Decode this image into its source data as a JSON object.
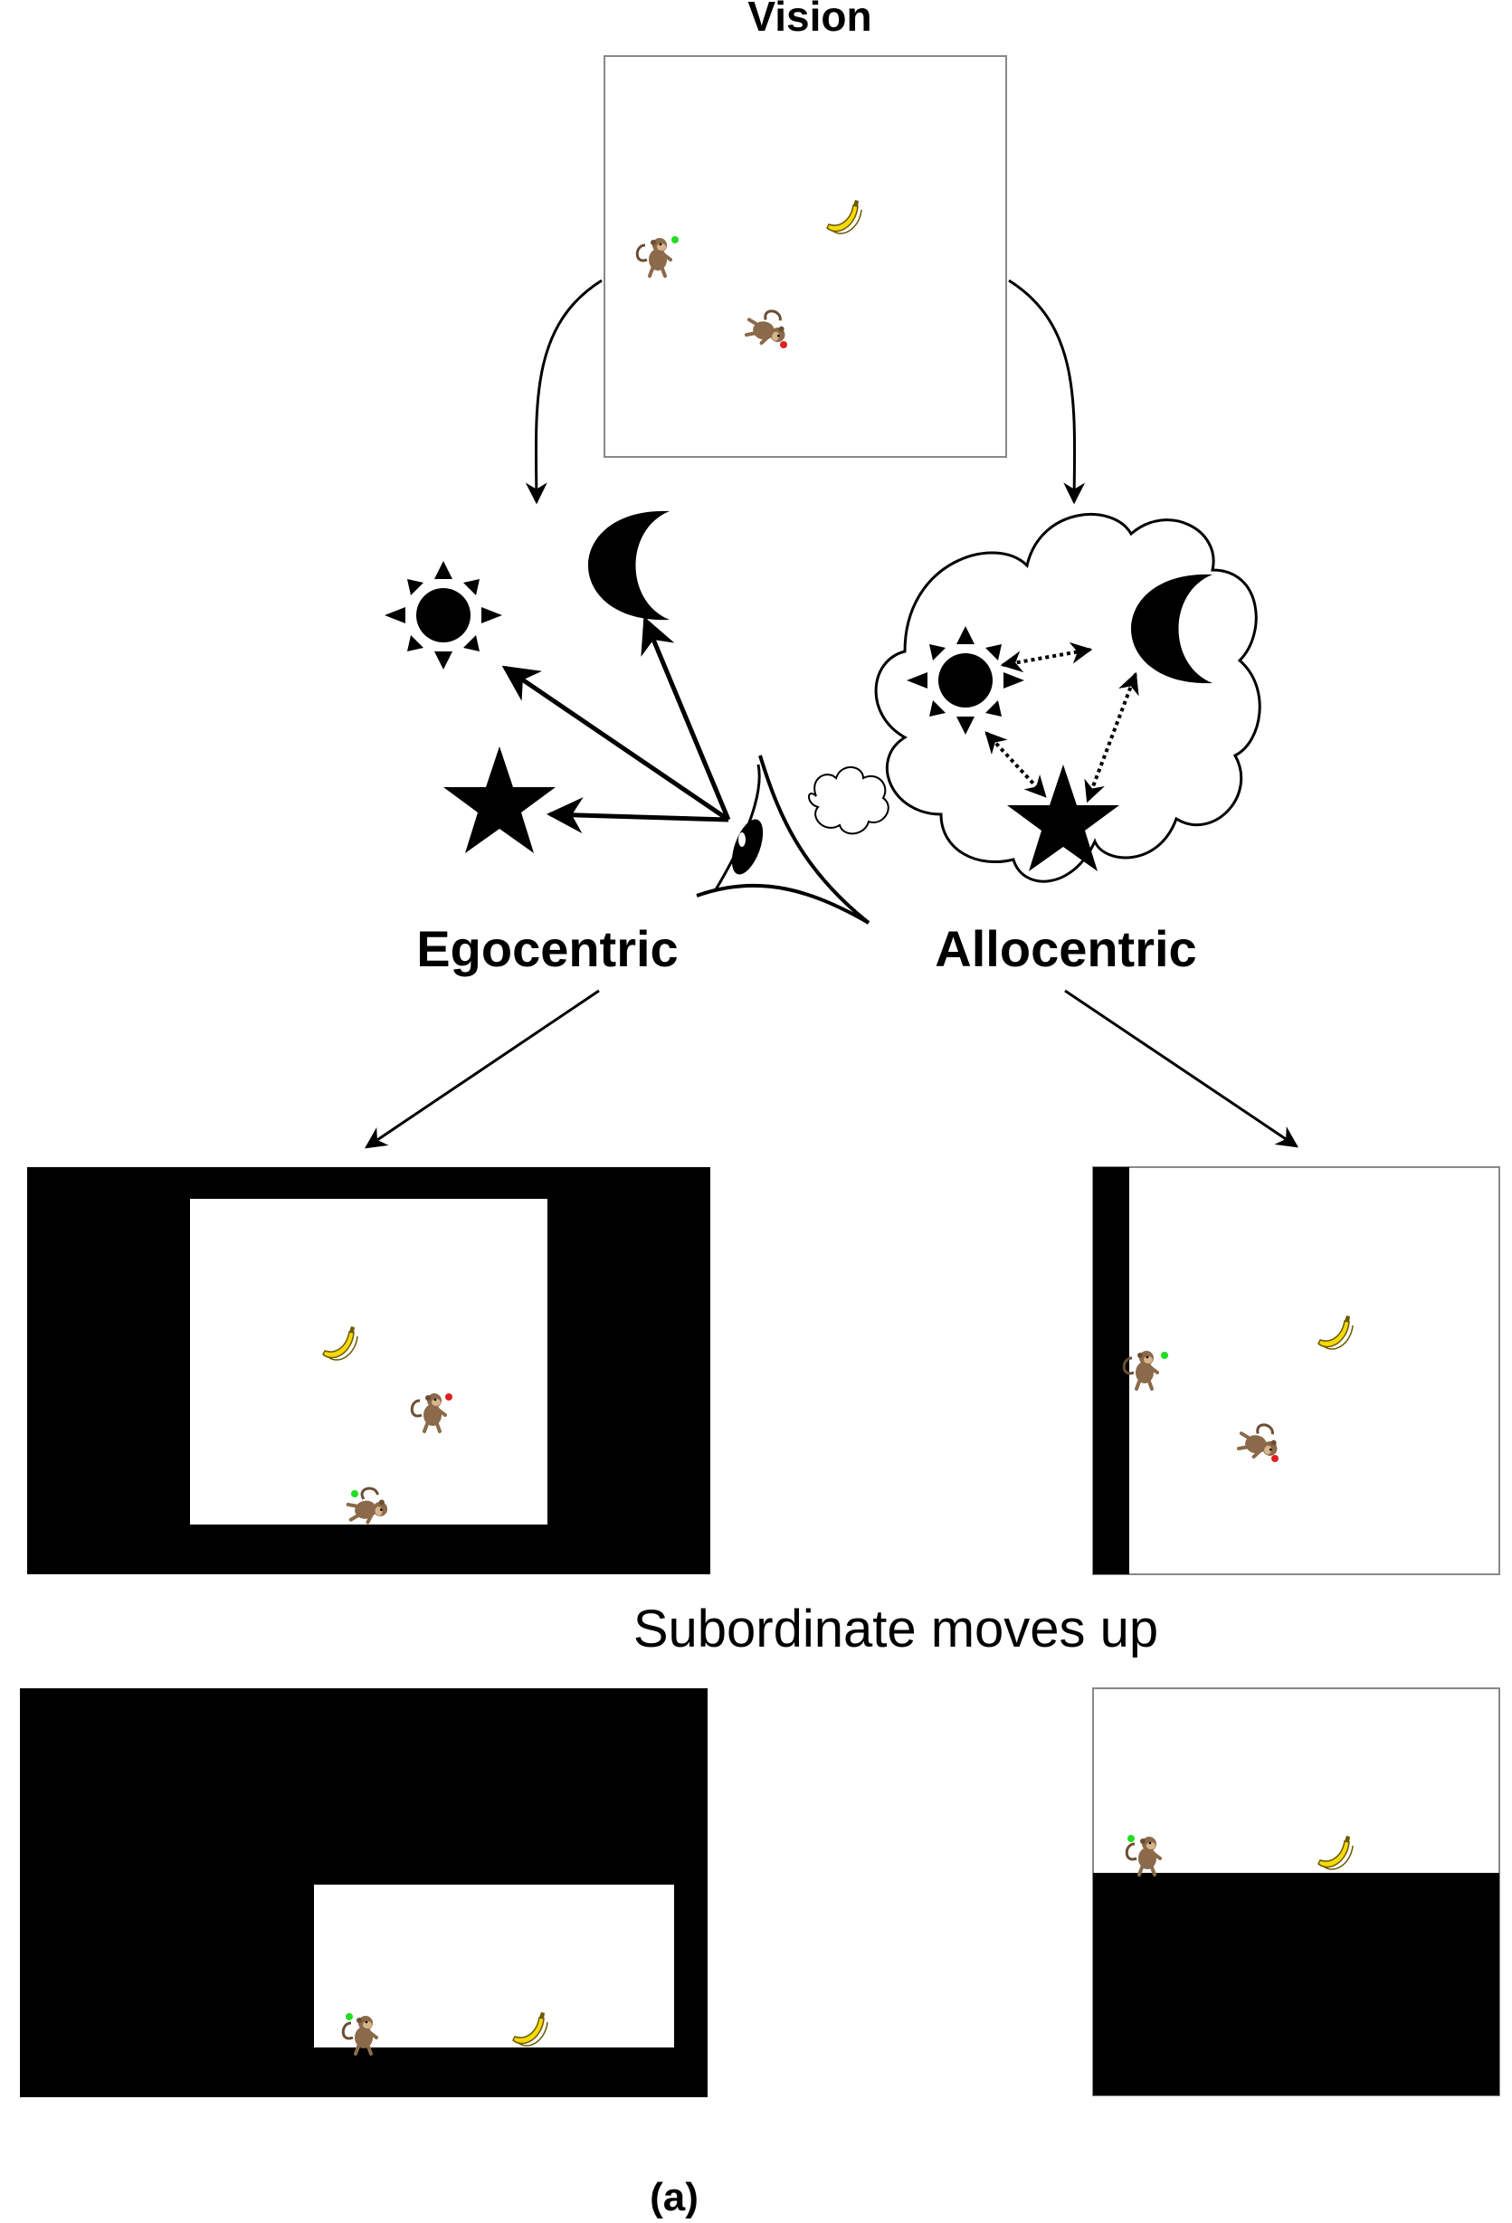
{
  "figure": {
    "title": "Vision",
    "egocentric_label": "Egocentric",
    "allocentric_label": "Allocentric",
    "transition_caption": "Subordinate moves up",
    "panel_label": "(a)"
  },
  "icons": {
    "landmarks": [
      "sun-icon",
      "moon-icon",
      "star-icon"
    ],
    "viewer": "eye-icon",
    "thought": "thought-cloud-icon",
    "agents": [
      "monkey-icon",
      "banana-icon"
    ]
  },
  "colors": {
    "background": "#ffffff",
    "ink": "#000000",
    "monkey_body": "#8a6a4a",
    "banana": "#f5d90a",
    "marker_green": "#22dd22",
    "marker_red": "#e02020"
  }
}
